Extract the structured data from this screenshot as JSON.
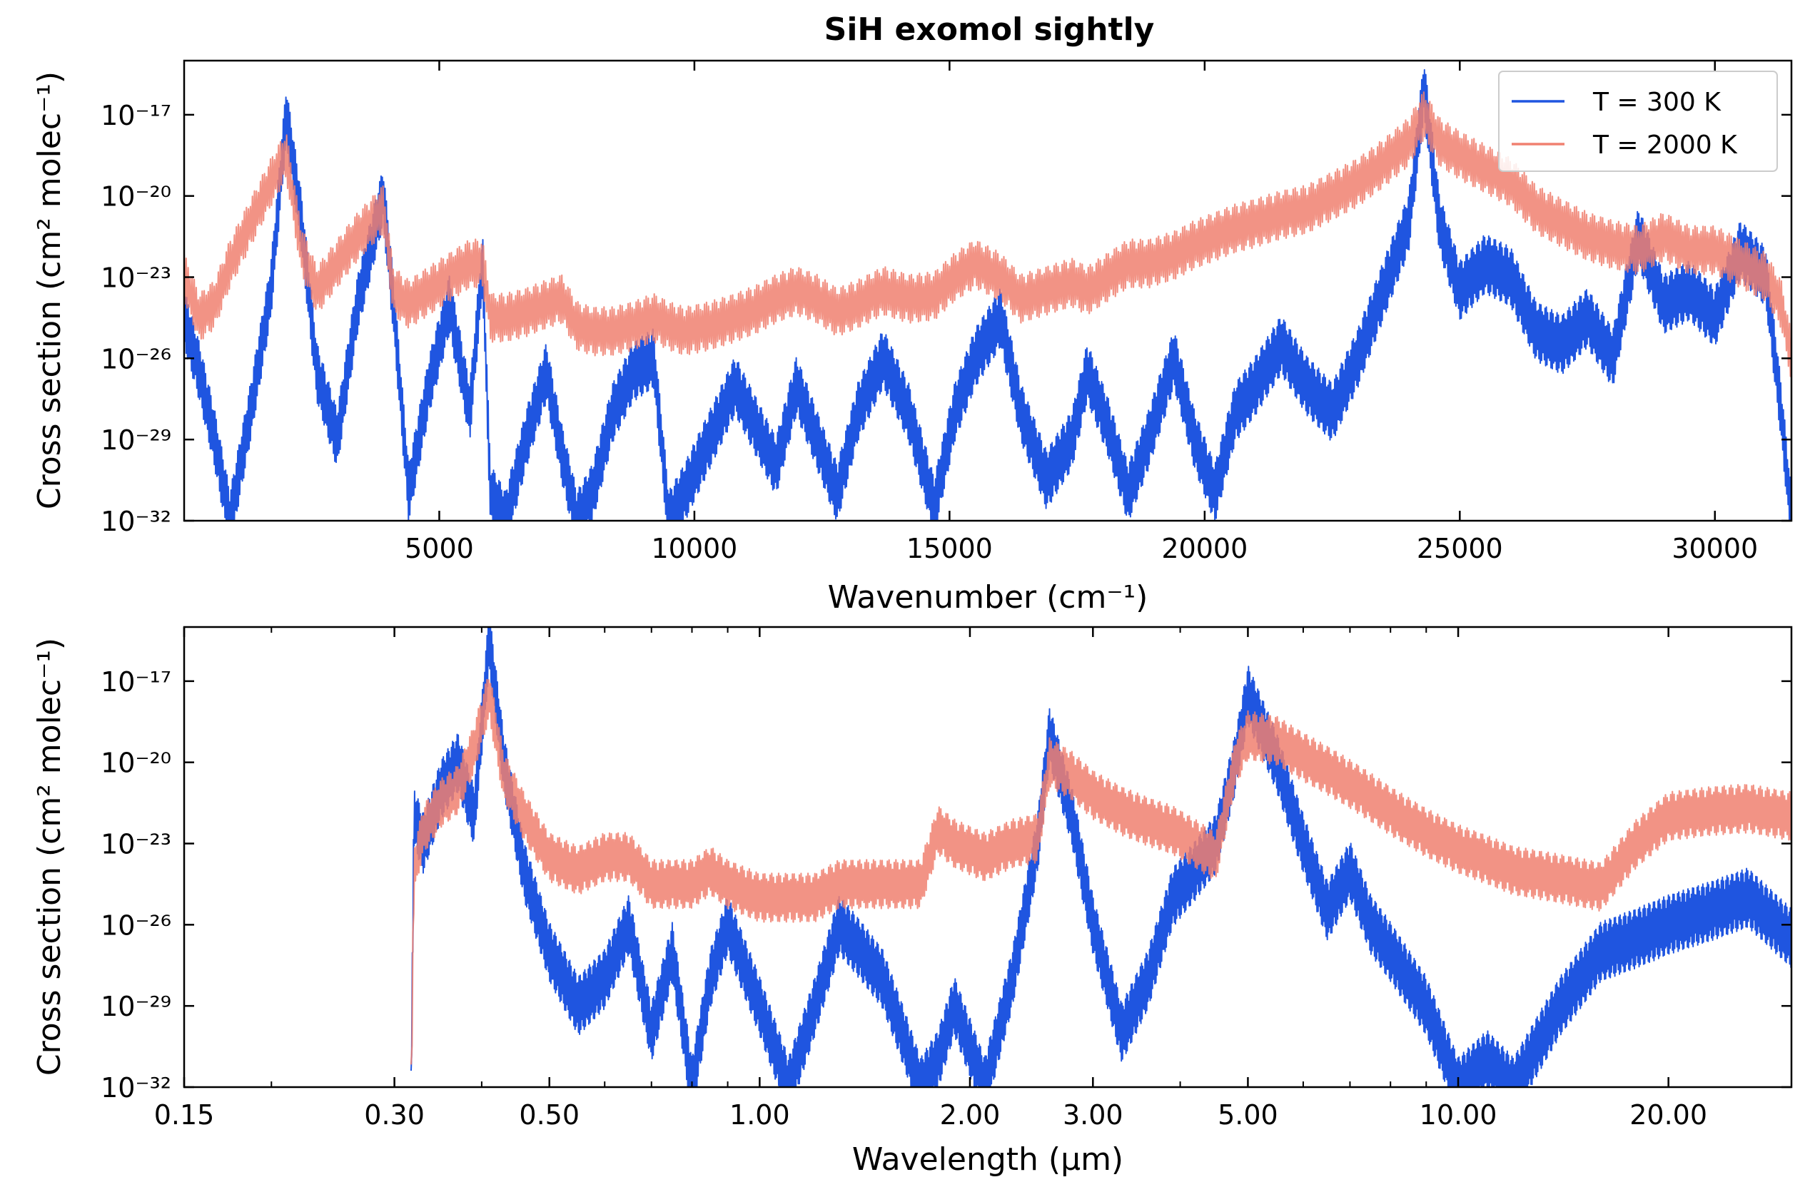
{
  "figure": {
    "title": "SiH exomol sightly"
  },
  "chart_data": [
    {
      "type": "line",
      "xscale": "linear",
      "yscale": "log",
      "xlabel": "Wavenumber (cm⁻¹)",
      "ylabel": "Cross section (cm² molec⁻¹)",
      "xlim": [
        0,
        31500
      ],
      "ylim": [
        -32,
        -15
      ],
      "x_ticks": [
        5000,
        10000,
        15000,
        20000,
        25000,
        30000
      ],
      "x_tick_labels": [
        "5000",
        "10000",
        "15000",
        "20000",
        "25000",
        "30000"
      ],
      "y_ticks": [
        -17,
        -20,
        -23,
        -26,
        -29,
        -32
      ],
      "y_tick_labels": [
        "10⁻¹⁷",
        "10⁻²⁰",
        "10⁻²³",
        "10⁻²⁶",
        "10⁻²⁹",
        "10⁻³²"
      ],
      "legend_position": "top-right",
      "series": [
        {
          "name": "T = 300 K",
          "color": "#1f55e0",
          "x": [
            0,
            300,
            600,
            900,
            1300,
            1700,
            2000,
            2300,
            2600,
            3000,
            3400,
            3900,
            4100,
            4400,
            4800,
            5200,
            5600,
            5850,
            6000,
            6300,
            6700,
            7100,
            7400,
            7700,
            8000,
            8400,
            8800,
            9200,
            9500,
            9800,
            10300,
            10800,
            11200,
            11600,
            12000,
            12400,
            12800,
            13200,
            13700,
            14200,
            14700,
            15100,
            15500,
            16000,
            16400,
            16900,
            17400,
            17700,
            18100,
            18500,
            18900,
            19400,
            19800,
            20200,
            20600,
            21000,
            21500,
            22000,
            22500,
            23000,
            23500,
            24000,
            24300,
            24600,
            25000,
            25500,
            26000,
            26500,
            27000,
            27500,
            28000,
            28500,
            29000,
            29500,
            30000,
            30500,
            31000,
            31300,
            31500
          ],
          "y_log10": [
            -24.5,
            -26.5,
            -29,
            -32,
            -28,
            -23.5,
            -17,
            -21,
            -26.5,
            -29,
            -24,
            -20,
            -24,
            -31,
            -27,
            -24,
            -28,
            -22.5,
            -31,
            -32,
            -29,
            -26.5,
            -29.5,
            -32,
            -31,
            -28,
            -26.5,
            -26,
            -32,
            -31,
            -29,
            -27,
            -28.5,
            -30,
            -27,
            -29,
            -31,
            -28,
            -26,
            -28,
            -31.5,
            -28,
            -26,
            -24.5,
            -28,
            -30.5,
            -29,
            -26.5,
            -28.5,
            -31,
            -29,
            -26,
            -29,
            -31,
            -28,
            -27,
            -25.5,
            -27,
            -28,
            -26,
            -23.5,
            -21,
            -16,
            -21,
            -23.5,
            -22.5,
            -23,
            -25,
            -25.5,
            -24.5,
            -26,
            -21.5,
            -24,
            -23.5,
            -24.5,
            -22,
            -23,
            -28,
            -32
          ]
        },
        {
          "name": "T = 2000 K",
          "color": "#f08070",
          "x": [
            0,
            300,
            600,
            900,
            1300,
            1700,
            2000,
            2300,
            2600,
            3000,
            3400,
            3900,
            4100,
            4400,
            4800,
            5200,
            5600,
            5850,
            6000,
            6300,
            6700,
            7100,
            7400,
            7700,
            8000,
            8400,
            8800,
            9200,
            9500,
            9800,
            10300,
            10800,
            11200,
            11600,
            12000,
            12400,
            12800,
            13200,
            13700,
            14200,
            14700,
            15100,
            15500,
            16000,
            16400,
            16900,
            17400,
            17700,
            18100,
            18500,
            18900,
            19400,
            19800,
            20200,
            20600,
            21000,
            21500,
            22000,
            22500,
            23000,
            23500,
            24000,
            24300,
            24600,
            25000,
            25500,
            26000,
            26500,
            27000,
            27500,
            28000,
            28500,
            29000,
            29500,
            30000,
            30500,
            31000,
            31300,
            31500
          ],
          "y_log10": [
            -23,
            -24.5,
            -24,
            -22.5,
            -21,
            -19.5,
            -18.5,
            -22,
            -23.5,
            -22.5,
            -21.5,
            -20.5,
            -23.5,
            -24,
            -23.5,
            -23,
            -22.5,
            -22.5,
            -24.5,
            -24.5,
            -24.3,
            -24,
            -23.8,
            -24.8,
            -25,
            -25,
            -24.8,
            -24.5,
            -24.8,
            -25,
            -24.8,
            -24.5,
            -24.2,
            -23.8,
            -23.5,
            -23.8,
            -24.3,
            -24,
            -23.5,
            -23.8,
            -23.7,
            -23,
            -22.5,
            -23,
            -23.8,
            -23.5,
            -23.2,
            -23.5,
            -23,
            -22.5,
            -22.5,
            -22.2,
            -21.8,
            -21.5,
            -21.2,
            -21,
            -20.7,
            -20.5,
            -20,
            -19.5,
            -18.8,
            -18,
            -17,
            -18,
            -18.5,
            -19,
            -19.5,
            -20.5,
            -21,
            -21.5,
            -21.8,
            -22,
            -21.5,
            -22,
            -22,
            -22.5,
            -23,
            -24,
            -26
          ]
        }
      ]
    },
    {
      "type": "line",
      "xscale": "log",
      "yscale": "log",
      "xlabel": "Wavelength (μm)",
      "ylabel": "Cross section (cm² molec⁻¹)",
      "xlim": [
        0.15,
        30
      ],
      "ylim": [
        -32,
        -15
      ],
      "x_ticks": [
        0.15,
        0.3,
        0.5,
        1.0,
        2.0,
        3.0,
        5.0,
        10.0,
        20.0
      ],
      "x_tick_labels": [
        "0.15",
        "0.30",
        "0.50",
        "1.00",
        "2.00",
        "3.00",
        "5.00",
        "10.00",
        "20.00"
      ],
      "y_ticks": [
        -17,
        -20,
        -23,
        -26,
        -29,
        -32
      ],
      "y_tick_labels": [
        "10⁻¹⁷",
        "10⁻²⁰",
        "10⁻²³",
        "10⁻²⁶",
        "10⁻²⁹",
        "10⁻³²"
      ],
      "series": [
        {
          "name": "T = 300 K",
          "color": "#1f55e0",
          "x": [
            0.317,
            0.32,
            0.33,
            0.35,
            0.37,
            0.39,
            0.41,
            0.43,
            0.46,
            0.5,
            0.55,
            0.6,
            0.65,
            0.7,
            0.75,
            0.8,
            0.85,
            0.9,
            1.0,
            1.1,
            1.2,
            1.3,
            1.4,
            1.5,
            1.6,
            1.7,
            1.8,
            1.9,
            2.1,
            2.3,
            2.5,
            2.6,
            2.8,
            3.0,
            3.3,
            3.6,
            3.9,
            4.2,
            4.5,
            4.8,
            5.0,
            5.5,
            6.0,
            6.5,
            7.0,
            7.5,
            8.0,
            9.0,
            10.0,
            11.0,
            12.0,
            14.0,
            16.0,
            18.0,
            20.0,
            23.0,
            26.0,
            30.0
          ],
          "y_log10": [
            -32,
            -22,
            -23,
            -21,
            -20,
            -22,
            -15.5,
            -20,
            -24,
            -27,
            -29,
            -28,
            -26,
            -30,
            -27,
            -32,
            -28,
            -26,
            -29,
            -32,
            -29,
            -26,
            -27,
            -28,
            -30,
            -32,
            -31,
            -29,
            -32,
            -28,
            -23,
            -19,
            -22,
            -26,
            -30,
            -28,
            -25,
            -24,
            -23,
            -20,
            -17.5,
            -20,
            -23,
            -25.5,
            -24,
            -26,
            -27,
            -29,
            -32,
            -31,
            -32,
            -29,
            -27,
            -26.5,
            -26,
            -25.5,
            -25,
            -26.5
          ]
        },
        {
          "name": "T = 2000 K",
          "color": "#f08070",
          "x": [
            0.317,
            0.32,
            0.33,
            0.35,
            0.37,
            0.39,
            0.41,
            0.43,
            0.46,
            0.5,
            0.55,
            0.6,
            0.65,
            0.7,
            0.75,
            0.8,
            0.85,
            0.9,
            1.0,
            1.1,
            1.2,
            1.3,
            1.4,
            1.5,
            1.6,
            1.7,
            1.8,
            1.9,
            2.1,
            2.3,
            2.5,
            2.6,
            2.8,
            3.0,
            3.3,
            3.6,
            3.9,
            4.2,
            4.5,
            4.8,
            5.0,
            5.5,
            6.0,
            6.5,
            7.0,
            7.5,
            8.0,
            9.0,
            10.0,
            11.0,
            12.0,
            14.0,
            16.0,
            18.0,
            20.0,
            23.0,
            26.0,
            30.0
          ],
          "y_log10": [
            -32,
            -24,
            -22.5,
            -21.5,
            -21,
            -19.5,
            -17.5,
            -20.5,
            -22,
            -23.5,
            -24,
            -23.5,
            -23.5,
            -24.5,
            -24.5,
            -24.5,
            -24,
            -24.5,
            -25,
            -25,
            -25,
            -24.5,
            -24.5,
            -24.5,
            -24.5,
            -24.5,
            -22.5,
            -23,
            -23.5,
            -23,
            -22.8,
            -20,
            -20.5,
            -21.2,
            -21.8,
            -22.2,
            -22.5,
            -23,
            -23.5,
            -20,
            -19,
            -19.2,
            -19.8,
            -20.3,
            -20.8,
            -21.3,
            -21.8,
            -22.6,
            -23.2,
            -23.6,
            -24,
            -24.3,
            -24.6,
            -23,
            -22,
            -21.8,
            -21.7,
            -22
          ]
        }
      ]
    }
  ]
}
